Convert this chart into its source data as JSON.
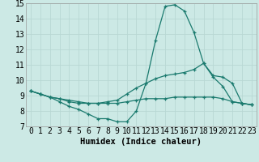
{
  "x": [
    0,
    1,
    2,
    3,
    4,
    5,
    6,
    7,
    8,
    9,
    10,
    11,
    12,
    13,
    14,
    15,
    16,
    17,
    18,
    19,
    20,
    21,
    22,
    23
  ],
  "line1": [
    9.3,
    9.1,
    8.9,
    8.6,
    8.3,
    8.1,
    7.8,
    7.5,
    7.5,
    7.3,
    7.3,
    8.0,
    9.8,
    12.6,
    14.8,
    14.9,
    14.5,
    13.1,
    11.1,
    10.2,
    9.6,
    8.6,
    8.5,
    8.4
  ],
  "line2": [
    9.3,
    9.1,
    8.9,
    8.8,
    8.6,
    8.5,
    8.5,
    8.5,
    8.6,
    8.7,
    9.1,
    9.5,
    9.8,
    10.1,
    10.3,
    10.4,
    10.5,
    10.7,
    11.1,
    10.3,
    10.2,
    9.8,
    8.5,
    8.4
  ],
  "line3": [
    9.3,
    9.1,
    8.9,
    8.8,
    8.7,
    8.6,
    8.5,
    8.5,
    8.5,
    8.5,
    8.6,
    8.7,
    8.8,
    8.8,
    8.8,
    8.9,
    8.9,
    8.9,
    8.9,
    8.9,
    8.8,
    8.6,
    8.5,
    8.4
  ],
  "bg_color": "#cce9e5",
  "grid_color": "#b8d8d4",
  "line_color": "#1a7a6e",
  "xlabel": "Humidex (Indice chaleur)",
  "xlim": [
    -0.5,
    23.5
  ],
  "ylim": [
    7,
    15
  ],
  "xticks": [
    0,
    1,
    2,
    3,
    4,
    5,
    6,
    7,
    8,
    9,
    10,
    11,
    12,
    13,
    14,
    15,
    16,
    17,
    18,
    19,
    20,
    21,
    22,
    23
  ],
  "yticks": [
    7,
    8,
    9,
    10,
    11,
    12,
    13,
    14,
    15
  ],
  "xlabel_fontsize": 7.5,
  "tick_fontsize": 7
}
